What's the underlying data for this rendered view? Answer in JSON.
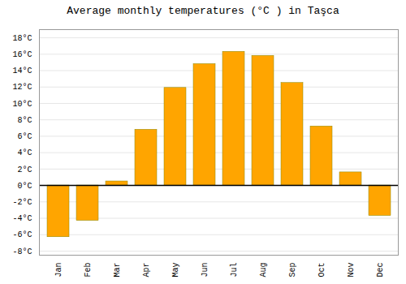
{
  "chart_data": {
    "type": "bar",
    "title": "Average monthly temperatures (°C ) in Taşca",
    "categories": [
      "Jan",
      "Feb",
      "Mar",
      "Apr",
      "May",
      "Jun",
      "Jul",
      "Aug",
      "Sep",
      "Oct",
      "Nov",
      "Dec"
    ],
    "values": [
      -6.3,
      -4.3,
      0.5,
      6.8,
      11.9,
      14.8,
      16.3,
      15.8,
      12.5,
      7.2,
      1.6,
      -3.7
    ],
    "color": "#FFA500",
    "ylim": [
      -8.5,
      19.0
    ],
    "yticks": [
      {
        "value": -8,
        "label": "-8°C"
      },
      {
        "value": -6,
        "label": "-6°C"
      },
      {
        "value": -4,
        "label": "-4°C"
      },
      {
        "value": -2,
        "label": "-2°C"
      },
      {
        "value": 0,
        "label": "0°C"
      },
      {
        "value": 2,
        "label": "2°C"
      },
      {
        "value": 4,
        "label": "4°C"
      },
      {
        "value": 6,
        "label": "6°C"
      },
      {
        "value": 8,
        "label": "8°C"
      },
      {
        "value": 10,
        "label": "10°C"
      },
      {
        "value": 12,
        "label": "12°C"
      },
      {
        "value": 14,
        "label": "14°C"
      },
      {
        "value": 16,
        "label": "16°C"
      },
      {
        "value": 18,
        "label": "18°C"
      }
    ],
    "grid": true
  }
}
